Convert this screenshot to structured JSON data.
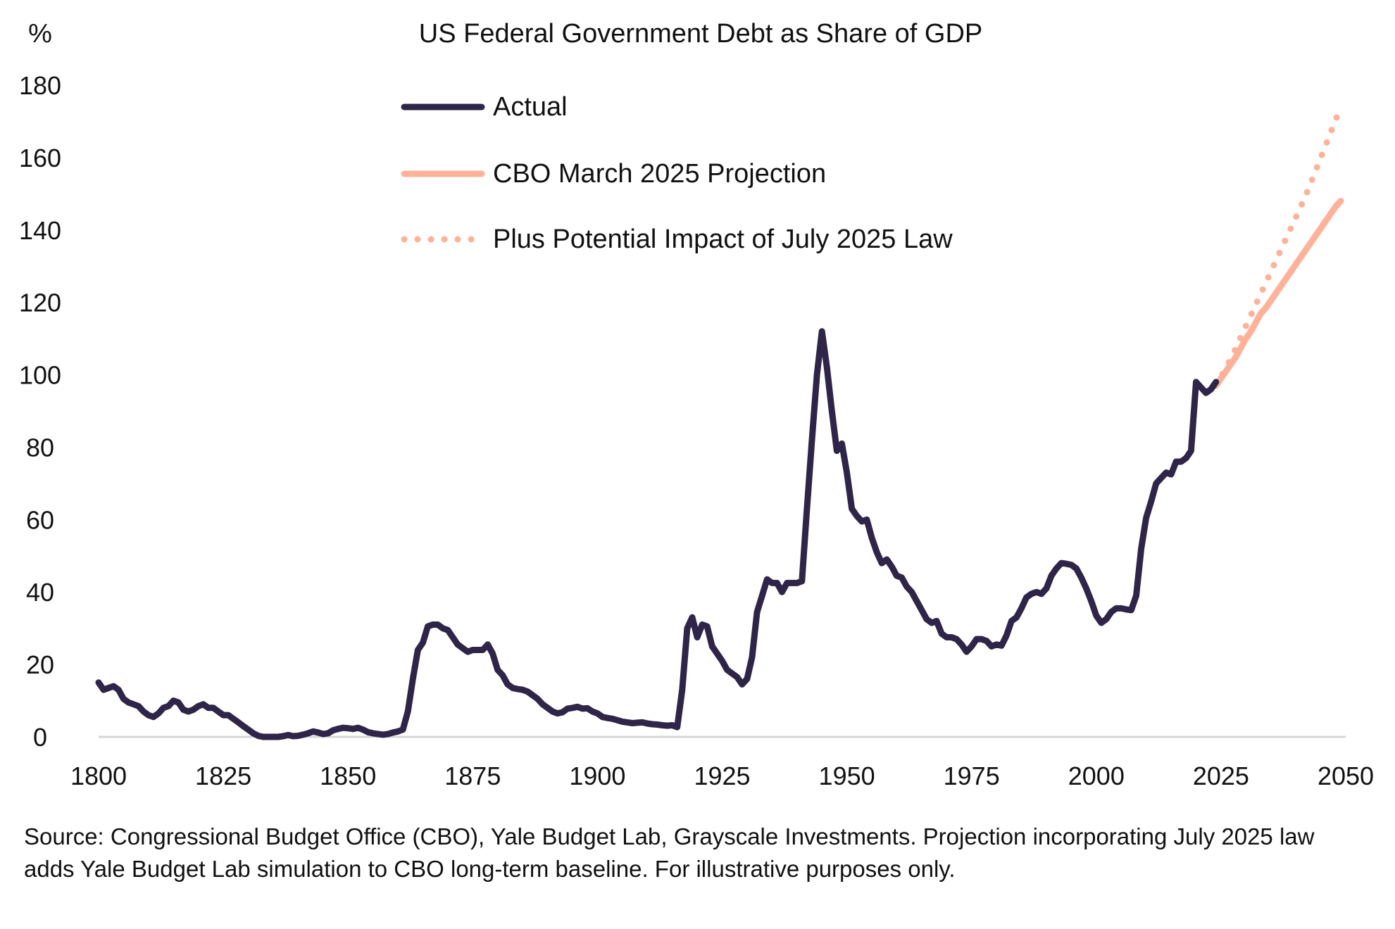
{
  "chart_data": {
    "type": "line",
    "title": "US Federal Government Debt as Share of GDP",
    "ylabel": "%",
    "xlabel": "",
    "xlim": [
      1800,
      2050
    ],
    "ylim": [
      0,
      180
    ],
    "xticks": [
      1800,
      1825,
      1850,
      1875,
      1900,
      1925,
      1950,
      1975,
      2000,
      2025,
      2050
    ],
    "yticks": [
      0,
      20,
      40,
      60,
      80,
      100,
      120,
      140,
      160,
      180
    ],
    "grid": false,
    "legend_position": "top-center",
    "series": [
      {
        "name": "Actual",
        "color": "#2e2548",
        "style": "solid",
        "x_start": 1800,
        "values": [
          15,
          13,
          13.5,
          14,
          13,
          10.5,
          9.5,
          9,
          8.5,
          7,
          6,
          5.5,
          6.5,
          8,
          8.5,
          10,
          9.5,
          7.5,
          7,
          7.5,
          8.5,
          9,
          8,
          8,
          7,
          6,
          6,
          5,
          4,
          3,
          2,
          1,
          0.3,
          0,
          0,
          0,
          0,
          0.2,
          0.5,
          0.2,
          0.3,
          0.6,
          1,
          1.5,
          1.2,
          0.8,
          1,
          1.8,
          2.2,
          2.5,
          2.4,
          2.2,
          2.5,
          2,
          1.3,
          1,
          0.8,
          0.6,
          0.8,
          1.2,
          1.5,
          2,
          7,
          16,
          24,
          26,
          30.5,
          31,
          31,
          30,
          29.5,
          27.5,
          25.5,
          24.5,
          23.5,
          24,
          24,
          24,
          25.5,
          23,
          18.5,
          17,
          14.5,
          13.5,
          13.2,
          13,
          12.5,
          11.5,
          10.5,
          9,
          8,
          7,
          6.5,
          6.8,
          7.8,
          8,
          8.3,
          7.8,
          7.9,
          7,
          6.5,
          5.5,
          5.2,
          5,
          4.6,
          4.2,
          4,
          3.8,
          3.9,
          4,
          3.7,
          3.5,
          3.4,
          3.2,
          3.1,
          3.2,
          2.7,
          13,
          30,
          33,
          27.5,
          31,
          30.5,
          25,
          23,
          21,
          18.5,
          17.5,
          16.5,
          14.5,
          16,
          22,
          34.5,
          39,
          43.5,
          42.5,
          42.5,
          40,
          42.5,
          42.5,
          42.5,
          43,
          63,
          82,
          100,
          112,
          102,
          90,
          79,
          81,
          73,
          63,
          61,
          59.5,
          60,
          55,
          51,
          48,
          49,
          47,
          44.5,
          44,
          41.5,
          40,
          37.5,
          35,
          32.5,
          31.5,
          32,
          28.5,
          27.5,
          27.5,
          27,
          25.5,
          23.5,
          25,
          27,
          27,
          26.5,
          25,
          25.5,
          25.2,
          28,
          32,
          33,
          35.5,
          38.5,
          39.5,
          40,
          39.5,
          41,
          44.5,
          46.5,
          48,
          47.8,
          47.5,
          46.5,
          44,
          41,
          37.5,
          33.5,
          31.5,
          32.5,
          34.5,
          35.5,
          35.5,
          35.2,
          35,
          39,
          52,
          60.5,
          65,
          70,
          71.5,
          73,
          72.5,
          76,
          76,
          77,
          79,
          98,
          96.5,
          95,
          96,
          98
        ]
      },
      {
        "name": "CBO March 2025 Projection",
        "color": "#ffb199",
        "style": "solid",
        "x_start": 2024,
        "values": [
          97,
          99,
          101,
          103,
          105,
          107.5,
          110,
          112,
          114.5,
          117,
          118.5,
          120.5,
          122.5,
          124.5,
          126.5,
          128.5,
          130.5,
          132.5,
          134.5,
          136.5,
          138.5,
          140.5,
          142.5,
          144.5,
          146.5,
          148
        ]
      },
      {
        "name": "Plus Potential Impact of July 2025 Law",
        "color": "#ffb199",
        "style": "dotted",
        "x_start": 2024,
        "values": [
          97,
          99.5,
          102,
          104.5,
          107.5,
          110.5,
          113.5,
          116.5,
          119.5,
          122.5,
          125.5,
          128.5,
          131.5,
          134.5,
          137.5,
          140.5,
          143.5,
          146.5,
          149.5,
          153,
          156.5,
          160,
          163.5,
          167,
          170.5,
          174
        ]
      }
    ]
  },
  "footnote": "Source: Congressional Budget Office (CBO), Yale Budget Lab, Grayscale Investments. Projection incorporating July 2025 law adds Yale Budget Lab simulation to CBO long-term baseline. For illustrative purposes only."
}
